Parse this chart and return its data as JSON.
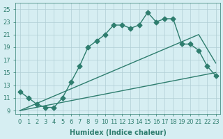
{
  "line1_x": [
    0,
    1,
    2,
    3,
    4,
    5,
    6,
    7,
    8,
    9,
    10,
    11,
    12,
    13,
    14,
    15,
    16,
    17,
    18,
    19,
    20,
    21,
    22,
    23
  ],
  "line1_y": [
    12.0,
    11.0,
    10.0,
    9.5,
    9.5,
    11.0,
    13.5,
    16.0,
    19.0,
    20.0,
    21.0,
    22.5,
    22.5,
    22.0,
    22.5,
    24.5,
    23.0,
    23.5,
    23.5,
    19.5,
    19.5,
    18.5,
    16.0,
    14.5
  ],
  "line2_x": [
    0,
    23
  ],
  "line2_y": [
    9.0,
    15.0
  ],
  "line3_x": [
    0,
    21,
    23
  ],
  "line3_y": [
    9.0,
    21.0,
    16.5
  ],
  "color": "#2e7d6e",
  "bg_color": "#d6eef2",
  "grid_color": "#b0cdd4",
  "xlabel": "Humidex (Indice chaleur)",
  "xlim": [
    -0.5,
    23.5
  ],
  "ylim": [
    8.5,
    26
  ],
  "xticks": [
    0,
    1,
    2,
    3,
    4,
    5,
    6,
    7,
    8,
    9,
    10,
    11,
    12,
    13,
    14,
    15,
    16,
    17,
    18,
    19,
    20,
    21,
    22,
    23
  ],
  "yticks": [
    9,
    11,
    13,
    15,
    17,
    19,
    21,
    23,
    25
  ],
  "tick_fontsize": 6,
  "xlabel_fontsize": 7,
  "title_fontsize": 7
}
